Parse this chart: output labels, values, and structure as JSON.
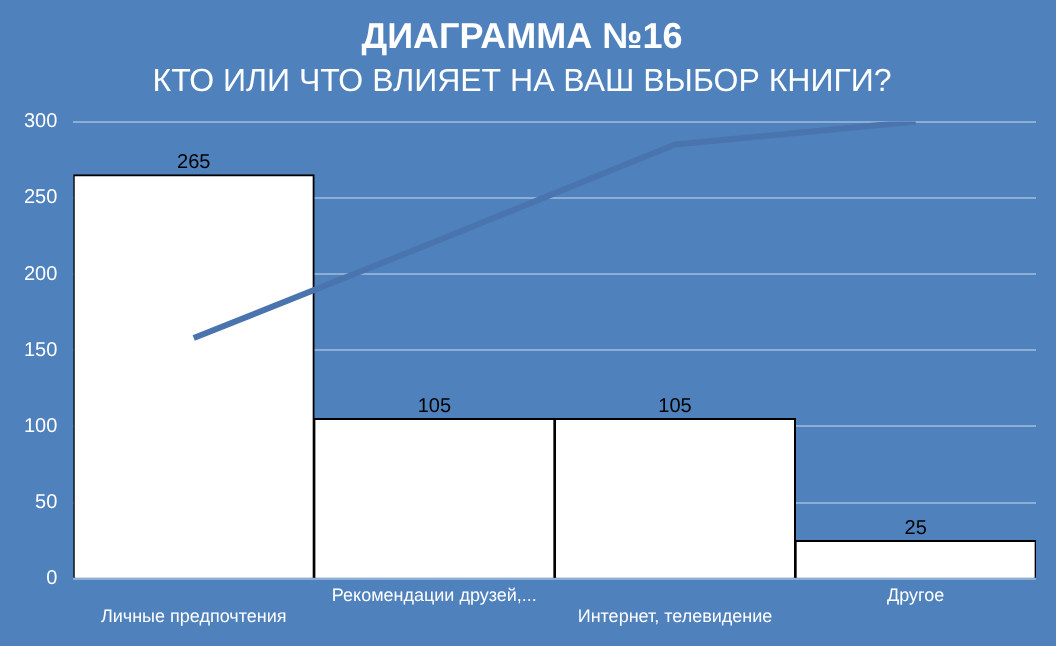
{
  "chart_data": {
    "type": "bar",
    "title": "ДИАГРАММА №16",
    "subtitle": "КТО ИЛИ ЧТО ВЛИЯЕТ НА ВАШ ВЫБОР КНИГИ?",
    "categories": [
      "Личные предпочтения",
      "Рекомендации друзей,...",
      "Интернет, телевидение",
      "Другое"
    ],
    "series": [
      {
        "color": "#ffffff",
        "values": [
          265,
          105,
          105,
          25
        ],
        "value_labels": [
          "265",
          "105",
          "105",
          "25"
        ]
      },
      {
        "type": "line",
        "color": "#4a74ae",
        "values": [
          158,
          221,
          285,
          300
        ]
      }
    ],
    "ylim": [
      0,
      300
    ],
    "yticks": [
      0,
      50,
      100,
      150,
      200,
      250,
      300
    ],
    "grid": "y",
    "legend": false,
    "marker": "none"
  }
}
